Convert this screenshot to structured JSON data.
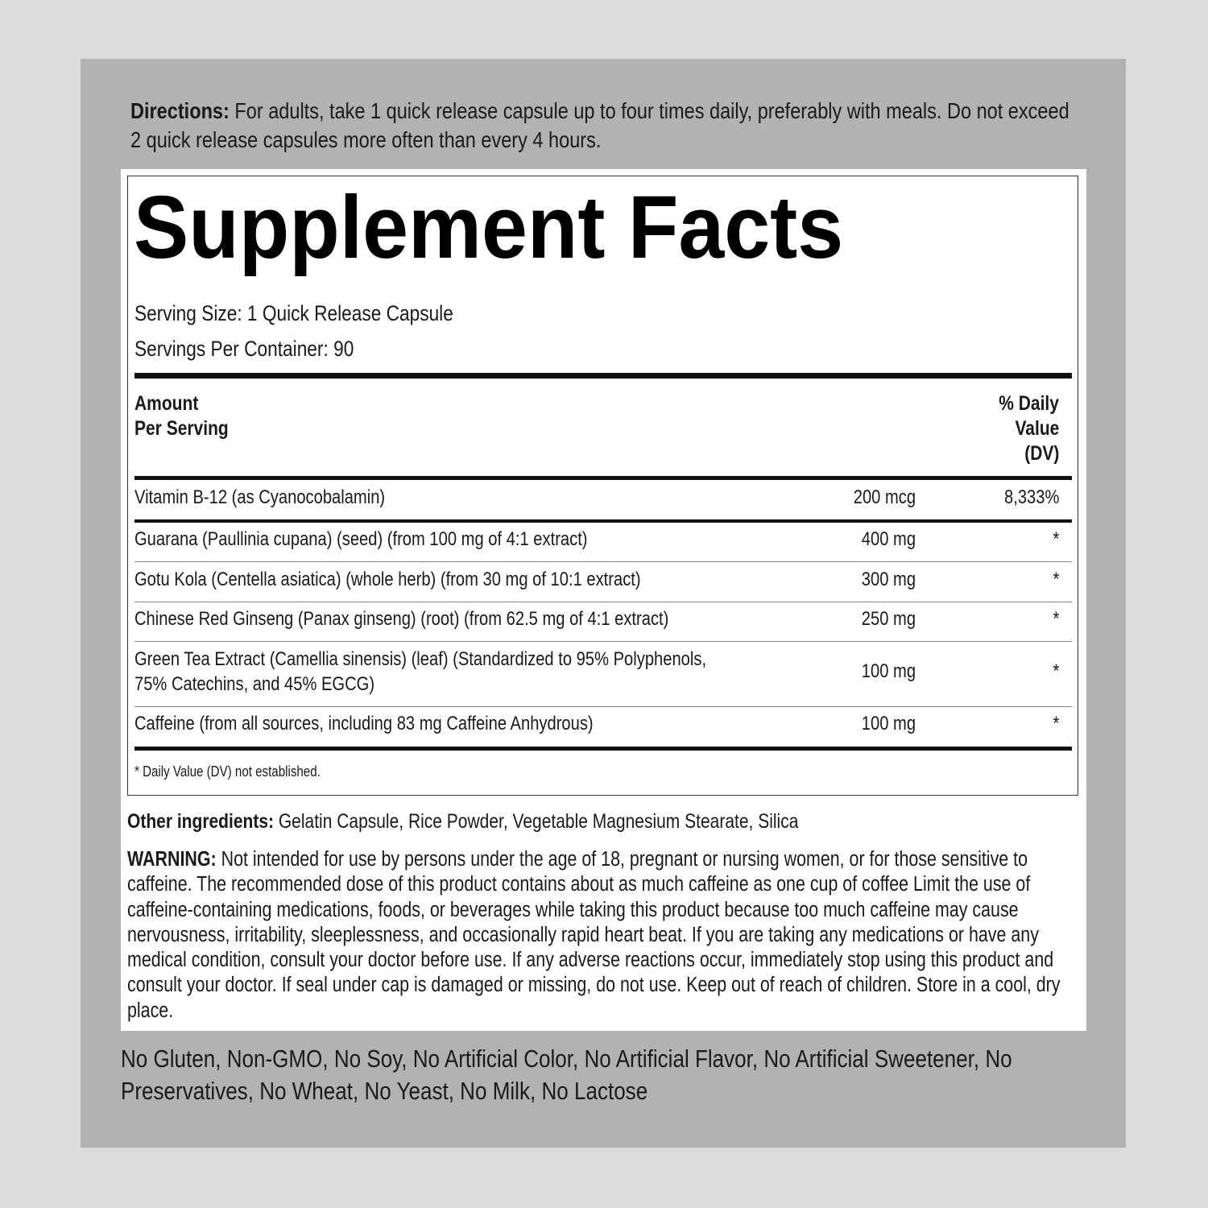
{
  "directions": {
    "label": "Directions:",
    "text": " For adults, take 1 quick release capsule up to four times daily, preferably with meals. Do not exceed 2 quick release capsules more often than every 4 hours."
  },
  "facts": {
    "title": "Supplement Facts",
    "serving_size": "Serving Size: 1 Quick Release Capsule",
    "servings_per_container": "Servings Per Container: 90",
    "header_amount_1": "Amount",
    "header_amount_2": "Per Serving",
    "header_dv_1": "% Daily",
    "header_dv_2": "Value",
    "header_dv_3": "(DV)",
    "rows": [
      {
        "name": "Vitamin B-12 (as Cyanocobalamin)",
        "amount": "200 mcg",
        "dv": "8,333%"
      },
      {
        "name": "Guarana (Paullinia cupana) (seed) (from 100 mg of 4:1 extract)",
        "amount": "400 mg",
        "dv": "*"
      },
      {
        "name": "Gotu Kola (Centella asiatica) (whole herb) (from 30 mg of 10:1 extract)",
        "amount": "300 mg",
        "dv": "*"
      },
      {
        "name": "Chinese Red Ginseng (Panax ginseng) (root) (from 62.5 mg of 4:1 extract)",
        "amount": "250 mg",
        "dv": "*"
      },
      {
        "name": "Green Tea Extract (Camellia sinensis) (leaf) (Standardized to 95% Polyphenols,",
        "name_line2": "75% Catechins, and 45% EGCG)",
        "amount": "100 mg",
        "dv": "*"
      },
      {
        "name": "Caffeine (from all sources, including 83 mg Caffeine Anhydrous)",
        "amount": "100 mg",
        "dv": "*"
      }
    ],
    "footnote": "* Daily Value (DV) not established."
  },
  "other": {
    "label": "Other ingredients:",
    "text": " Gelatin Capsule, Rice Powder, Vegetable Magnesium Stearate, Silica"
  },
  "warning": {
    "label": "WARNING:",
    "text": " Not intended for use by persons under the age of 18, pregnant or nursing women, or for those sensitive to caffeine. The recommended dose of this product contains about as much caffeine as one cup of coffee Limit the use of caffeine-containing medications, foods, or beverages while taking this product because too much caffeine may cause nervousness, irritability, sleeplessness, and occasionally rapid heart beat. If you are taking any medications or have any medical condition, consult your doctor before use. If any adverse reactions occur, immediately stop using this product and consult your doctor. If seal under cap is damaged or missing, do not use. Keep out of reach of children. Store in a cool, dry place."
  },
  "free_from": "No Gluten, Non-GMO, No Soy, No Artificial Color, No Artificial Flavor, No Artificial Sweetener, No Preservatives, No Wheat, No Yeast, No Milk, No Lactose",
  "colors": {
    "background": "#dcdcdc",
    "panel": "#b1b2b4",
    "label": "#ffffff",
    "text": "#1a1a1a"
  }
}
